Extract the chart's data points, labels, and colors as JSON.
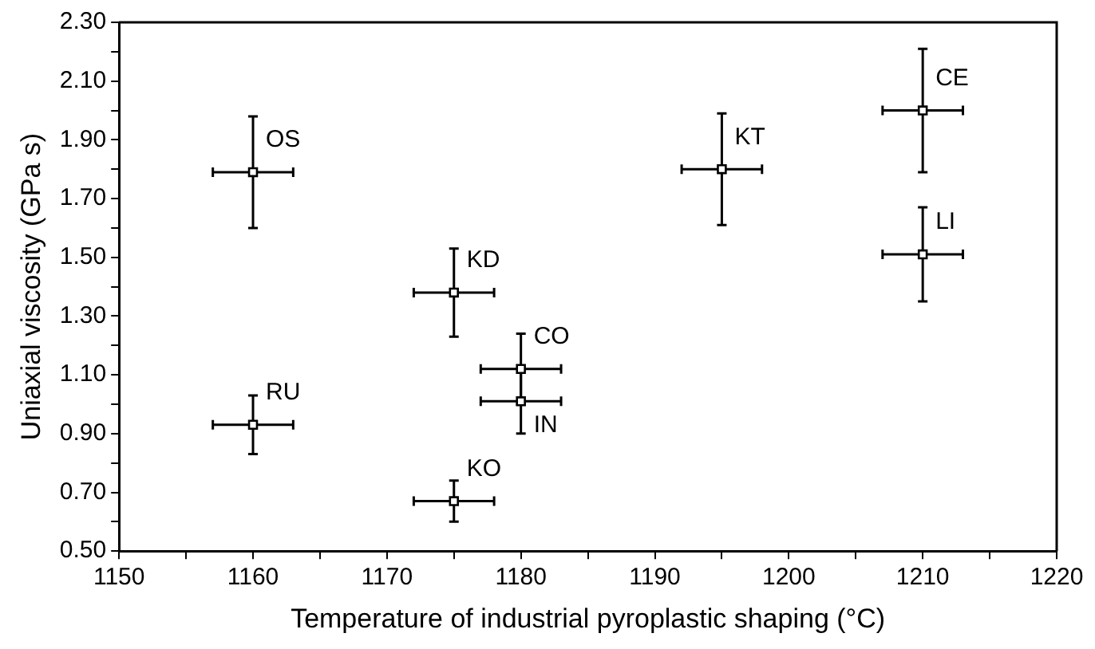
{
  "chart_data": {
    "type": "scatter",
    "xlabel": "Temperature of industrial pyroplastic shaping (°C)",
    "ylabel": "Uniaxial viscosity (GPa s)",
    "x": [
      1160,
      1160,
      1175,
      1180,
      1180,
      1175,
      1195,
      1210,
      1210
    ],
    "values": [
      1.79,
      0.93,
      1.38,
      1.12,
      1.01,
      0.67,
      1.8,
      2.0,
      1.51
    ],
    "errors": [
      0.19,
      0.1,
      0.15,
      0.12,
      0.11,
      0.07,
      0.19,
      0.21,
      0.16
    ],
    "xerrors": [
      3,
      3,
      3,
      3,
      3,
      3,
      3,
      3,
      3
    ],
    "color": "#000000",
    "marker": "square",
    "grid": false,
    "xlim": [
      1150,
      1220
    ],
    "xticks": [
      1150,
      {
        "value": 1155,
        "label": null
      },
      1160,
      {
        "value": 1165,
        "label": null
      },
      1170,
      {
        "value": 1175,
        "label": null
      },
      1180,
      {
        "value": 1185,
        "label": null
      },
      1190,
      {
        "value": 1195,
        "label": null
      },
      1200,
      {
        "value": 1205,
        "label": null
      },
      1210,
      {
        "value": 1215,
        "label": null
      },
      1220
    ],
    "ylim": [
      0.5,
      2.3
    ],
    "yticks": [
      {
        "value": 0.5,
        "label": "0.50"
      },
      {
        "value": 0.6,
        "label": null
      },
      {
        "value": 0.7,
        "label": "0.70"
      },
      {
        "value": 0.8,
        "label": null
      },
      {
        "value": 0.9,
        "label": "0.90"
      },
      {
        "value": 1.0,
        "label": null
      },
      {
        "value": 1.1,
        "label": "1.10"
      },
      {
        "value": 1.2,
        "label": null
      },
      {
        "value": 1.3,
        "label": "1.30"
      },
      {
        "value": 1.4,
        "label": null
      },
      {
        "value": 1.5,
        "label": "1.50"
      },
      {
        "value": 1.6,
        "label": null
      },
      {
        "value": 1.7,
        "label": "1.70"
      },
      {
        "value": 1.8,
        "label": null
      },
      {
        "value": 1.9,
        "label": "1.90"
      },
      {
        "value": 2.0,
        "label": null
      },
      {
        "value": 2.1,
        "label": "2.10"
      },
      {
        "value": 2.2,
        "label": null
      },
      {
        "value": 2.3,
        "label": "2.30"
      }
    ],
    "annotations": [
      {
        "text": "OS",
        "x": 1160,
        "y": 1.79
      },
      {
        "text": "RU",
        "x": 1160,
        "y": 0.93
      },
      {
        "text": "KD",
        "x": 1175,
        "y": 1.38
      },
      {
        "text": "CO",
        "x": 1180,
        "y": 1.12
      },
      {
        "text": "IN",
        "x": 1180,
        "y": 1.01
      },
      {
        "text": "KO",
        "x": 1175,
        "y": 0.67
      },
      {
        "text": "KT",
        "x": 1195,
        "y": 1.8
      },
      {
        "text": "CE",
        "x": 1210,
        "y": 2.0
      },
      {
        "text": "LI",
        "x": 1210,
        "y": 1.51
      }
    ]
  }
}
